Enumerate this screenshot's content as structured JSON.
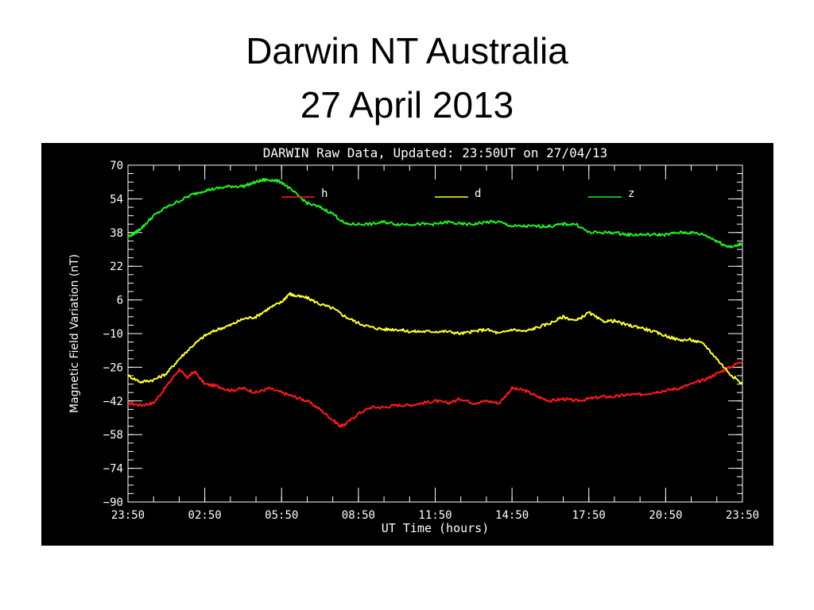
{
  "slide": {
    "title_line1": "Darwin NT Australia",
    "title_line2": "27 April 2013"
  },
  "colors": {
    "background": "#000000",
    "foreground": "#ffffff",
    "h": "#ff1a1a",
    "d": "#ffff33",
    "z": "#22ee22"
  },
  "chart_data": {
    "type": "line",
    "title": "DARWIN Raw Data, Updated: 23:50UT on 27/04/13",
    "xlabel": "UT Time (hours)",
    "ylabel": "Magnetic Field Variation (nT)",
    "xlim": [
      0,
      24
    ],
    "ylim": [
      -90,
      70
    ],
    "x_ticks": [
      0,
      3,
      6,
      9,
      12,
      15,
      18,
      21,
      24
    ],
    "x_tick_labels": [
      "23:50",
      "02:50",
      "05:50",
      "08:50",
      "11:50",
      "14:50",
      "17:50",
      "20:50",
      "23:50"
    ],
    "y_ticks": [
      70,
      54,
      38,
      22,
      6,
      -10,
      -26,
      -42,
      -58,
      -74,
      -90
    ],
    "y_tick_labels": [
      "70",
      "54",
      "38",
      "22",
      "6",
      "−10",
      "−26",
      "−42",
      "−58",
      "−74",
      "−90"
    ],
    "legend_placement": "top",
    "grid": false,
    "series": [
      {
        "name": "h",
        "color": "#ff1a1a",
        "x": [
          0,
          0.5,
          1,
          1.5,
          2,
          2.3,
          2.6,
          3,
          3.5,
          4,
          4.5,
          5,
          5.5,
          6,
          6.5,
          7,
          7.5,
          8,
          8.3,
          8.5,
          9,
          9.5,
          10,
          10.5,
          11,
          11.5,
          12,
          12.5,
          13,
          13.5,
          14,
          14.5,
          15,
          15.5,
          16,
          16.5,
          17,
          17.5,
          18,
          18.5,
          19,
          19.5,
          20,
          20.5,
          21,
          21.5,
          22,
          22.5,
          23,
          23.5,
          24
        ],
        "y": [
          -43,
          -44,
          -43,
          -35,
          -27,
          -31,
          -28,
          -34,
          -35,
          -37,
          -36,
          -38,
          -36,
          -38,
          -40,
          -42,
          -46,
          -51,
          -54,
          -53,
          -48,
          -45,
          -45,
          -44,
          -44,
          -43,
          -42,
          -43,
          -41,
          -43,
          -42,
          -43,
          -36,
          -37,
          -40,
          -42,
          -41,
          -42,
          -41,
          -40,
          -40,
          -39,
          -39,
          -38,
          -37,
          -36,
          -34,
          -32,
          -29,
          -26,
          -23
        ]
      },
      {
        "name": "d",
        "color": "#ffff33",
        "x": [
          0,
          0.5,
          1,
          1.5,
          2,
          2.5,
          3,
          3.5,
          4,
          4.5,
          5,
          5.5,
          6,
          6.3,
          6.5,
          7,
          7.5,
          8,
          8.5,
          9,
          9.5,
          10,
          10.5,
          11,
          11.5,
          12,
          12.5,
          13,
          13.5,
          14,
          14.5,
          15,
          15.5,
          16,
          16.5,
          17,
          17.5,
          18,
          18.5,
          19,
          19.5,
          20,
          20.5,
          21,
          21.5,
          22,
          22.5,
          23,
          23.5,
          24
        ],
        "y": [
          -30,
          -33,
          -32,
          -29,
          -22,
          -16,
          -11,
          -8,
          -6,
          -3,
          -2,
          2,
          5,
          9,
          8,
          7,
          4,
          2,
          -2,
          -5,
          -7,
          -8,
          -8,
          -9,
          -9,
          -9,
          -9,
          -10,
          -9,
          -8,
          -10,
          -8,
          -9,
          -7,
          -5,
          -2,
          -4,
          0,
          -4,
          -4,
          -6,
          -7,
          -9,
          -11,
          -13,
          -13,
          -15,
          -22,
          -29,
          -34
        ]
      },
      {
        "name": "z",
        "color": "#22ee22",
        "x": [
          0,
          0.3,
          0.6,
          1,
          1.5,
          2,
          2.5,
          3,
          3.5,
          4,
          4.5,
          5,
          5.3,
          5.6,
          6,
          6.5,
          7,
          7.5,
          8,
          8.5,
          9,
          9.5,
          10,
          10.5,
          11,
          11.5,
          12,
          12.5,
          13,
          13.5,
          14,
          14.5,
          15,
          15.5,
          16,
          16.5,
          17,
          17.5,
          18,
          18.5,
          19,
          19.5,
          20,
          20.5,
          21,
          21.5,
          22,
          22.5,
          23,
          23.3,
          23.6,
          24
        ],
        "y": [
          36,
          38,
          41,
          46,
          50,
          53,
          56,
          58,
          59,
          60,
          60,
          62,
          63,
          63,
          62,
          57,
          52,
          50,
          47,
          42,
          42,
          42,
          43,
          42,
          42,
          42,
          42,
          43,
          42,
          42,
          43,
          43,
          41,
          41,
          41,
          41,
          42,
          42,
          38,
          38,
          38,
          37,
          37,
          37,
          37,
          38,
          38,
          37,
          34,
          32,
          31,
          33
        ]
      }
    ]
  }
}
